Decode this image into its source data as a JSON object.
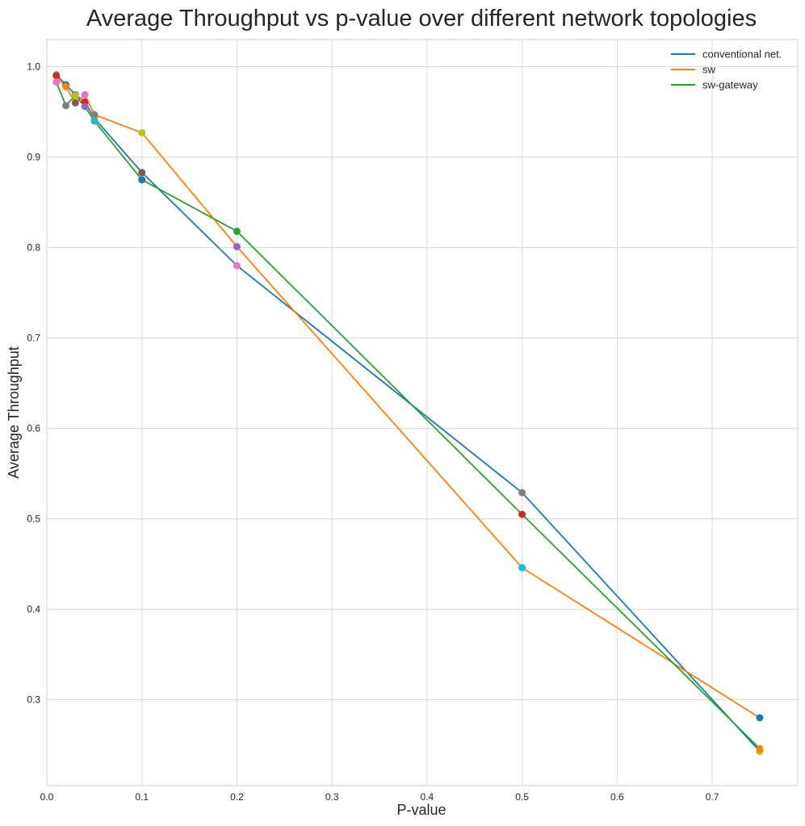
{
  "chart_data": {
    "type": "line",
    "title": "Average Throughput vs p-value over different network topologies",
    "xlabel": "P-value",
    "ylabel": "Average Throughput",
    "xlim": [
      0.0,
      0.79
    ],
    "ylim": [
      0.205,
      1.03
    ],
    "x_ticks": [
      0.0,
      0.1,
      0.2,
      0.3,
      0.4,
      0.5,
      0.6,
      0.7
    ],
    "x_tick_labels": [
      "0.0",
      "0.1",
      "0.2",
      "0.3",
      "0.4",
      "0.5",
      "0.6",
      "0.7"
    ],
    "y_ticks": [
      0.3,
      0.4,
      0.5,
      0.6,
      0.7,
      0.8,
      0.9,
      1.0
    ],
    "y_tick_labels": [
      "0.3",
      "0.4",
      "0.5",
      "0.6",
      "0.7",
      "0.8",
      "0.9",
      "1.0"
    ],
    "grid": true,
    "legend_position": "top-right",
    "x": [
      0.01,
      0.02,
      0.03,
      0.04,
      0.05,
      0.1,
      0.2,
      0.5,
      0.75
    ],
    "series": [
      {
        "name": "conventional net.",
        "color": "#1f77b4",
        "values": [
          0.991,
          0.98,
          0.969,
          0.961,
          0.943,
          0.883,
          0.78,
          0.529,
          0.243
        ]
      },
      {
        "name": "sw",
        "color": "#ff7f0e",
        "values": [
          0.99,
          0.978,
          0.96,
          0.969,
          0.947,
          0.927,
          0.801,
          0.446,
          0.28
        ]
      },
      {
        "name": "sw-gateway",
        "color": "#2ca02c",
        "values": [
          0.983,
          0.957,
          0.968,
          0.956,
          0.94,
          0.875,
          0.818,
          0.505,
          0.246
        ]
      }
    ],
    "marker_colors": [
      "#17becf",
      "#1f77b4",
      "#2ca02c",
      "#d62728",
      "#ff7f0e",
      "#8c564b",
      "#e377c2",
      "#7f7f7f",
      "#bcbd22",
      "#9467bd"
    ]
  }
}
